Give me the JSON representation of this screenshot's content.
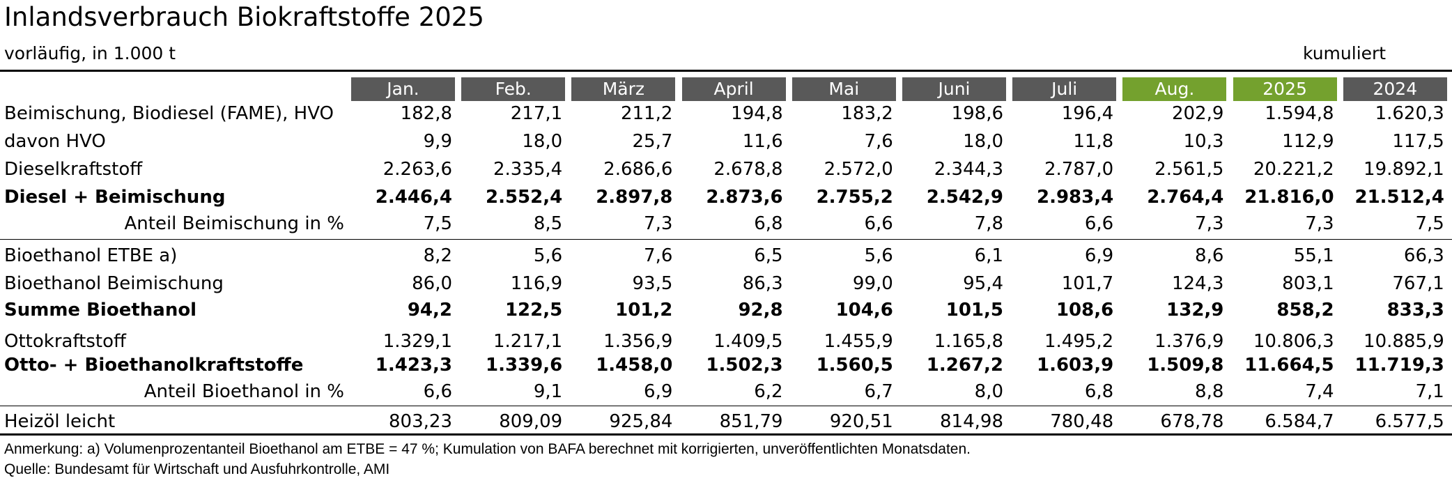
{
  "header": {
    "title": "Inlandsverbrauch Biokraftstoffe 2025",
    "subtitle": "vorläufig, in 1.000 t",
    "cumulative_label": "kumuliert"
  },
  "table": {
    "columns": [
      {
        "label": "Jan.",
        "color": "#595959"
      },
      {
        "label": "Feb.",
        "color": "#595959"
      },
      {
        "label": "März",
        "color": "#595959"
      },
      {
        "label": "April",
        "color": "#595959"
      },
      {
        "label": "Mai",
        "color": "#595959"
      },
      {
        "label": "Juni",
        "color": "#595959"
      },
      {
        "label": "Juli",
        "color": "#595959"
      },
      {
        "label": "Aug.",
        "color": "#74a12e"
      },
      {
        "label": "2025",
        "color": "#74a12e"
      },
      {
        "label": "2024",
        "color": "#595959"
      }
    ],
    "rows": [
      {
        "label": "Beimischung, Biodiesel (FAME), HVO",
        "values": [
          "182,8",
          "217,1",
          "211,2",
          "194,8",
          "183,2",
          "198,6",
          "196,4",
          "202,9",
          "1.594,8",
          "1.620,3"
        ]
      },
      {
        "label": "davon HVO",
        "values": [
          "9,9",
          "18,0",
          "25,7",
          "11,6",
          "7,6",
          "18,0",
          "11,8",
          "10,3",
          "112,9",
          "117,5"
        ]
      },
      {
        "label": "Dieselkraftstoff",
        "values": [
          "2.263,6",
          "2.335,4",
          "2.686,6",
          "2.678,8",
          "2.572,0",
          "2.344,3",
          "2.787,0",
          "2.561,5",
          "20.221,2",
          "19.892,1"
        ]
      },
      {
        "label": "Diesel + Beimischung",
        "bold": true,
        "values": [
          "2.446,4",
          "2.552,4",
          "2.897,8",
          "2.873,6",
          "2.755,2",
          "2.542,9",
          "2.983,4",
          "2.764,4",
          "21.816,0",
          "21.512,4"
        ]
      },
      {
        "label": "Anteil Beimischung in %",
        "indent": true,
        "values": [
          "7,5",
          "8,5",
          "7,3",
          "6,8",
          "6,6",
          "7,8",
          "6,6",
          "7,3",
          "7,3",
          "7,5"
        ]
      },
      {
        "label": "Bioethanol ETBE a)",
        "values": [
          "8,2",
          "5,6",
          "7,6",
          "6,5",
          "5,6",
          "6,1",
          "6,9",
          "8,6",
          "55,1",
          "66,3"
        ]
      },
      {
        "label": "Bioethanol Beimischung",
        "values": [
          "86,0",
          "116,9",
          "93,5",
          "86,3",
          "99,0",
          "95,4",
          "101,7",
          "124,3",
          "803,1",
          "767,1"
        ]
      },
      {
        "label": "Summe Bioethanol",
        "bold": true,
        "values": [
          "94,2",
          "122,5",
          "101,2",
          "92,8",
          "104,6",
          "101,5",
          "108,6",
          "132,9",
          "858,2",
          "833,3"
        ]
      },
      {
        "label": "Ottokraftstoff",
        "values": [
          "1.329,1",
          "1.217,1",
          "1.356,9",
          "1.409,5",
          "1.455,9",
          "1.165,8",
          "1.495,2",
          "1.376,9",
          "10.806,3",
          "10.885,9"
        ]
      },
      {
        "label": "Otto- + Bioethanolkraftstoffe",
        "bold": true,
        "values": [
          "1.423,3",
          "1.339,6",
          "1.458,0",
          "1.502,3",
          "1.560,5",
          "1.267,2",
          "1.603,9",
          "1.509,8",
          "11.664,5",
          "11.719,3"
        ]
      },
      {
        "label": "Anteil Bioethanol in %",
        "indent": true,
        "values": [
          "6,6",
          "9,1",
          "6,9",
          "6,2",
          "6,7",
          "8,0",
          "6,8",
          "8,8",
          "7,4",
          "7,1"
        ]
      },
      {
        "label": "Heizöl leicht",
        "values": [
          "803,23",
          "809,09",
          "925,84",
          "851,79",
          "920,51",
          "814,98",
          "780,48",
          "678,78",
          "6.584,7",
          "6.577,5"
        ]
      }
    ]
  },
  "footer": {
    "note": "Anmerkung: a) Volumenprozentanteil Bioethanol am ETBE = 47 %; Kumulation von BAFA berechnet mit korrigierten, unveröffentlichten Monatsdaten.",
    "source": "Quelle: Bundesamt für Wirtschaft und Ausfuhrkontrolle, AMI"
  }
}
